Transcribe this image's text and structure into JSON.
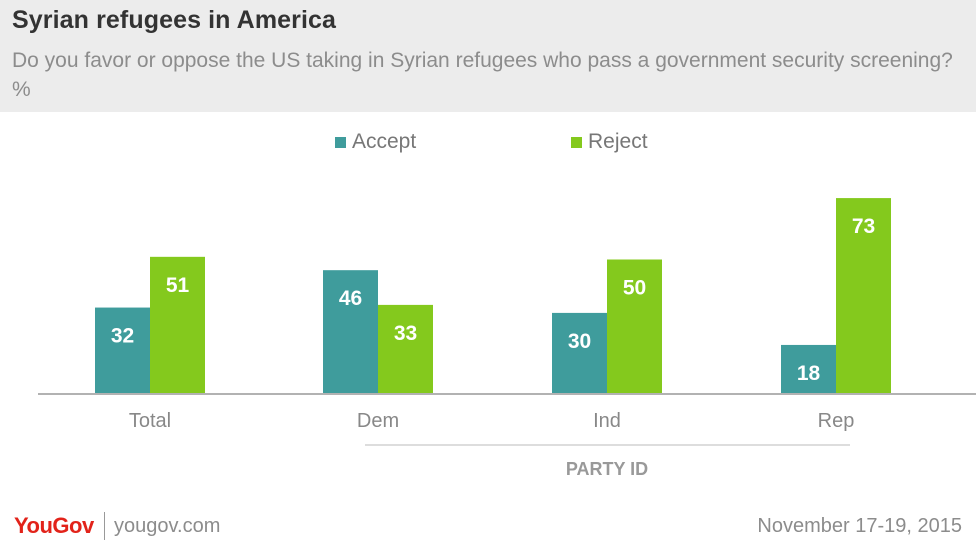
{
  "header": {
    "title": "Syrian refugees in America",
    "subtitle": "Do you favor or oppose the US taking in Syrian refugees who pass a government security screening? %"
  },
  "legend": {
    "accept_label": "Accept",
    "reject_label": "Reject"
  },
  "colors": {
    "accept": "#3f9c9c",
    "reject": "#84c91d",
    "header_bg": "#ececec",
    "brand": "#e2231a"
  },
  "chart_data": {
    "type": "bar",
    "title": "Syrian refugees in America",
    "subtitle": "Do you favor or oppose the US taking in Syrian refugees who pass a government security screening? %",
    "categories": [
      "Total",
      "Dem",
      "Ind",
      "Rep"
    ],
    "series": [
      {
        "name": "Accept",
        "values": [
          32,
          46,
          30,
          18
        ]
      },
      {
        "name": "Reject",
        "values": [
          51,
          33,
          50,
          73
        ]
      }
    ],
    "group_label": "PARTY ID",
    "xlabel": "",
    "ylabel": "",
    "ylim": [
      0,
      80
    ],
    "grid": false,
    "legend": "top-center"
  },
  "footer": {
    "brand": "YouGov",
    "url": "yougov.com",
    "date": "November 17-19, 2015"
  }
}
